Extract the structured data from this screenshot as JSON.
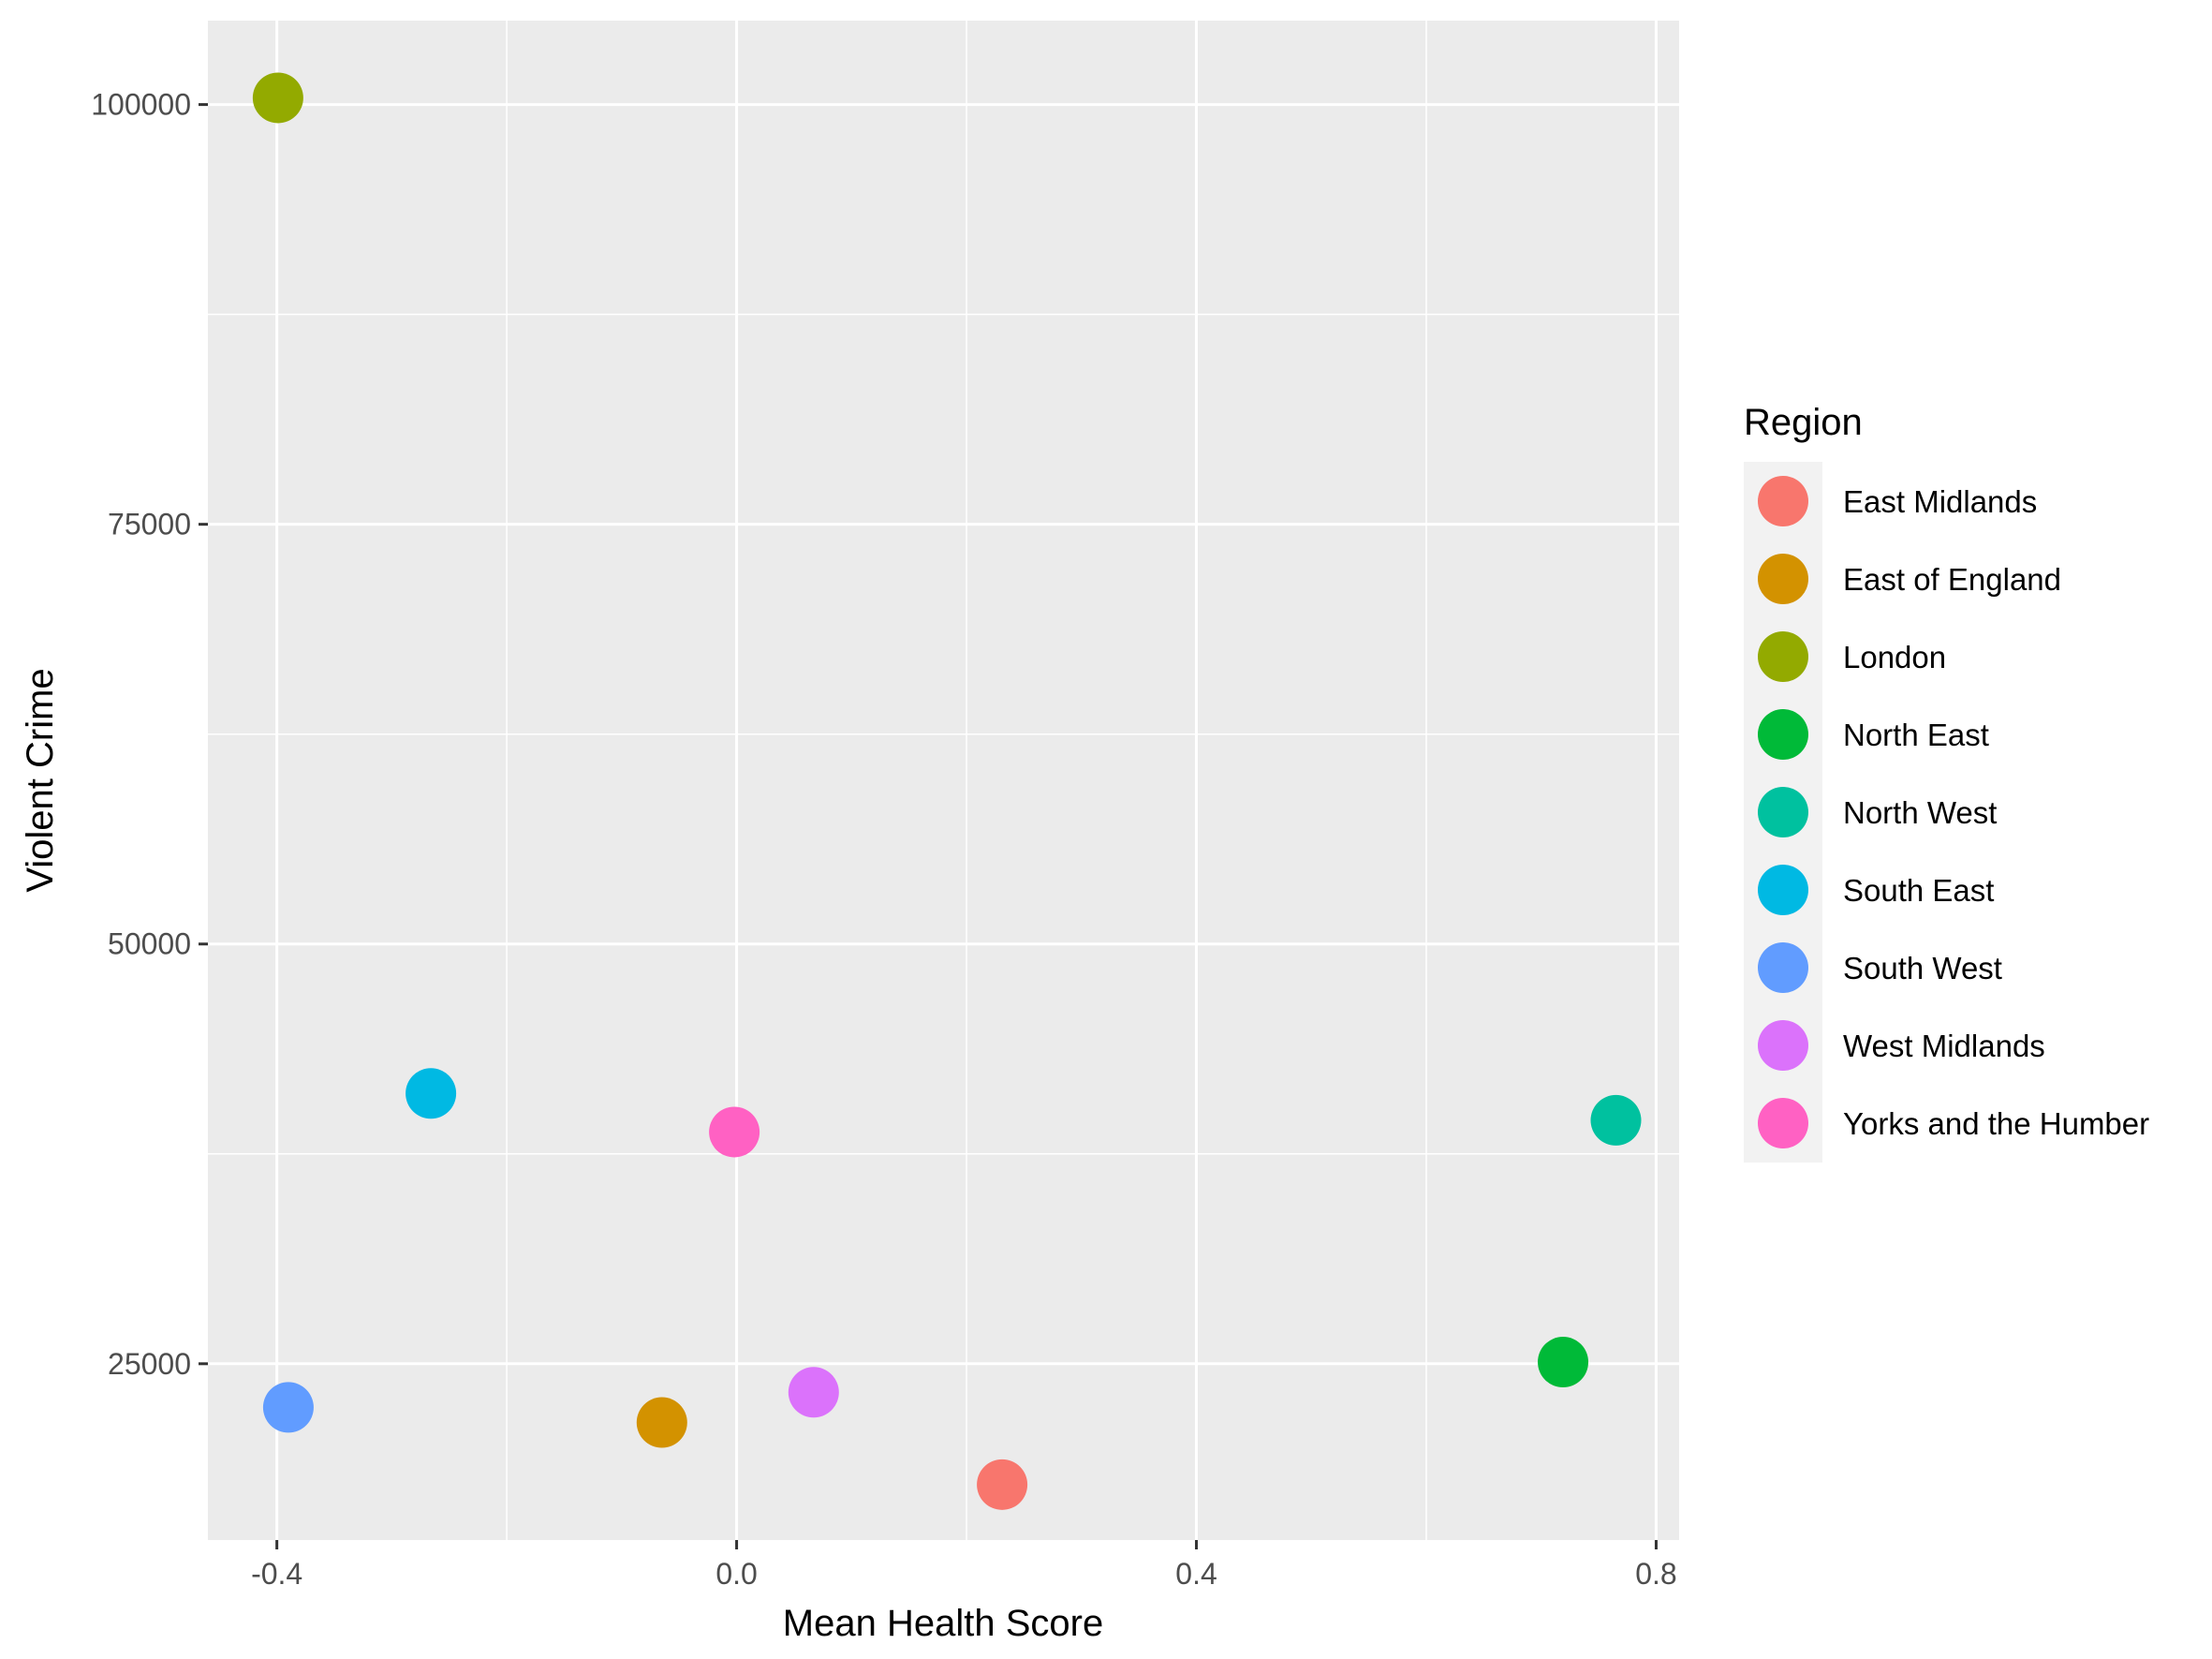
{
  "chart_data": {
    "type": "scatter",
    "title": "",
    "xlabel": "Mean Health Score",
    "ylabel": "Violent Crime",
    "xlim": [
      -0.46,
      0.82
    ],
    "ylim": [
      14500,
      105000
    ],
    "x_ticks": [
      -0.4,
      0.0,
      0.4,
      0.8
    ],
    "x_tick_labels": [
      "-0.4",
      "0.0",
      "0.4",
      "0.8"
    ],
    "y_ticks": [
      25000,
      50000,
      75000,
      100000
    ],
    "y_tick_labels": [
      "25000",
      "50000",
      "75000",
      "100000"
    ],
    "grid": true,
    "legend": {
      "title": "Region",
      "placement": "right"
    },
    "series": [
      {
        "name": "East Midlands",
        "color": "#F8766D",
        "x": 0.231,
        "y": 17800
      },
      {
        "name": "East of England",
        "color": "#D39200",
        "x": -0.065,
        "y": 21500
      },
      {
        "name": "London",
        "color": "#93AA00",
        "x": -0.399,
        "y": 100400
      },
      {
        "name": "North East",
        "color": "#00BA38",
        "x": 0.719,
        "y": 25100
      },
      {
        "name": "North West",
        "color": "#00C19F",
        "x": 0.765,
        "y": 39500
      },
      {
        "name": "South East",
        "color": "#00B9E3",
        "x": -0.266,
        "y": 41100
      },
      {
        "name": "South West",
        "color": "#619CFF",
        "x": -0.39,
        "y": 22400
      },
      {
        "name": "West Midlands",
        "color": "#DB72FB",
        "x": 0.067,
        "y": 23300
      },
      {
        "name": "Yorks and the Humber",
        "color": "#FF61C3",
        "x": -0.002,
        "y": 38800
      }
    ]
  }
}
